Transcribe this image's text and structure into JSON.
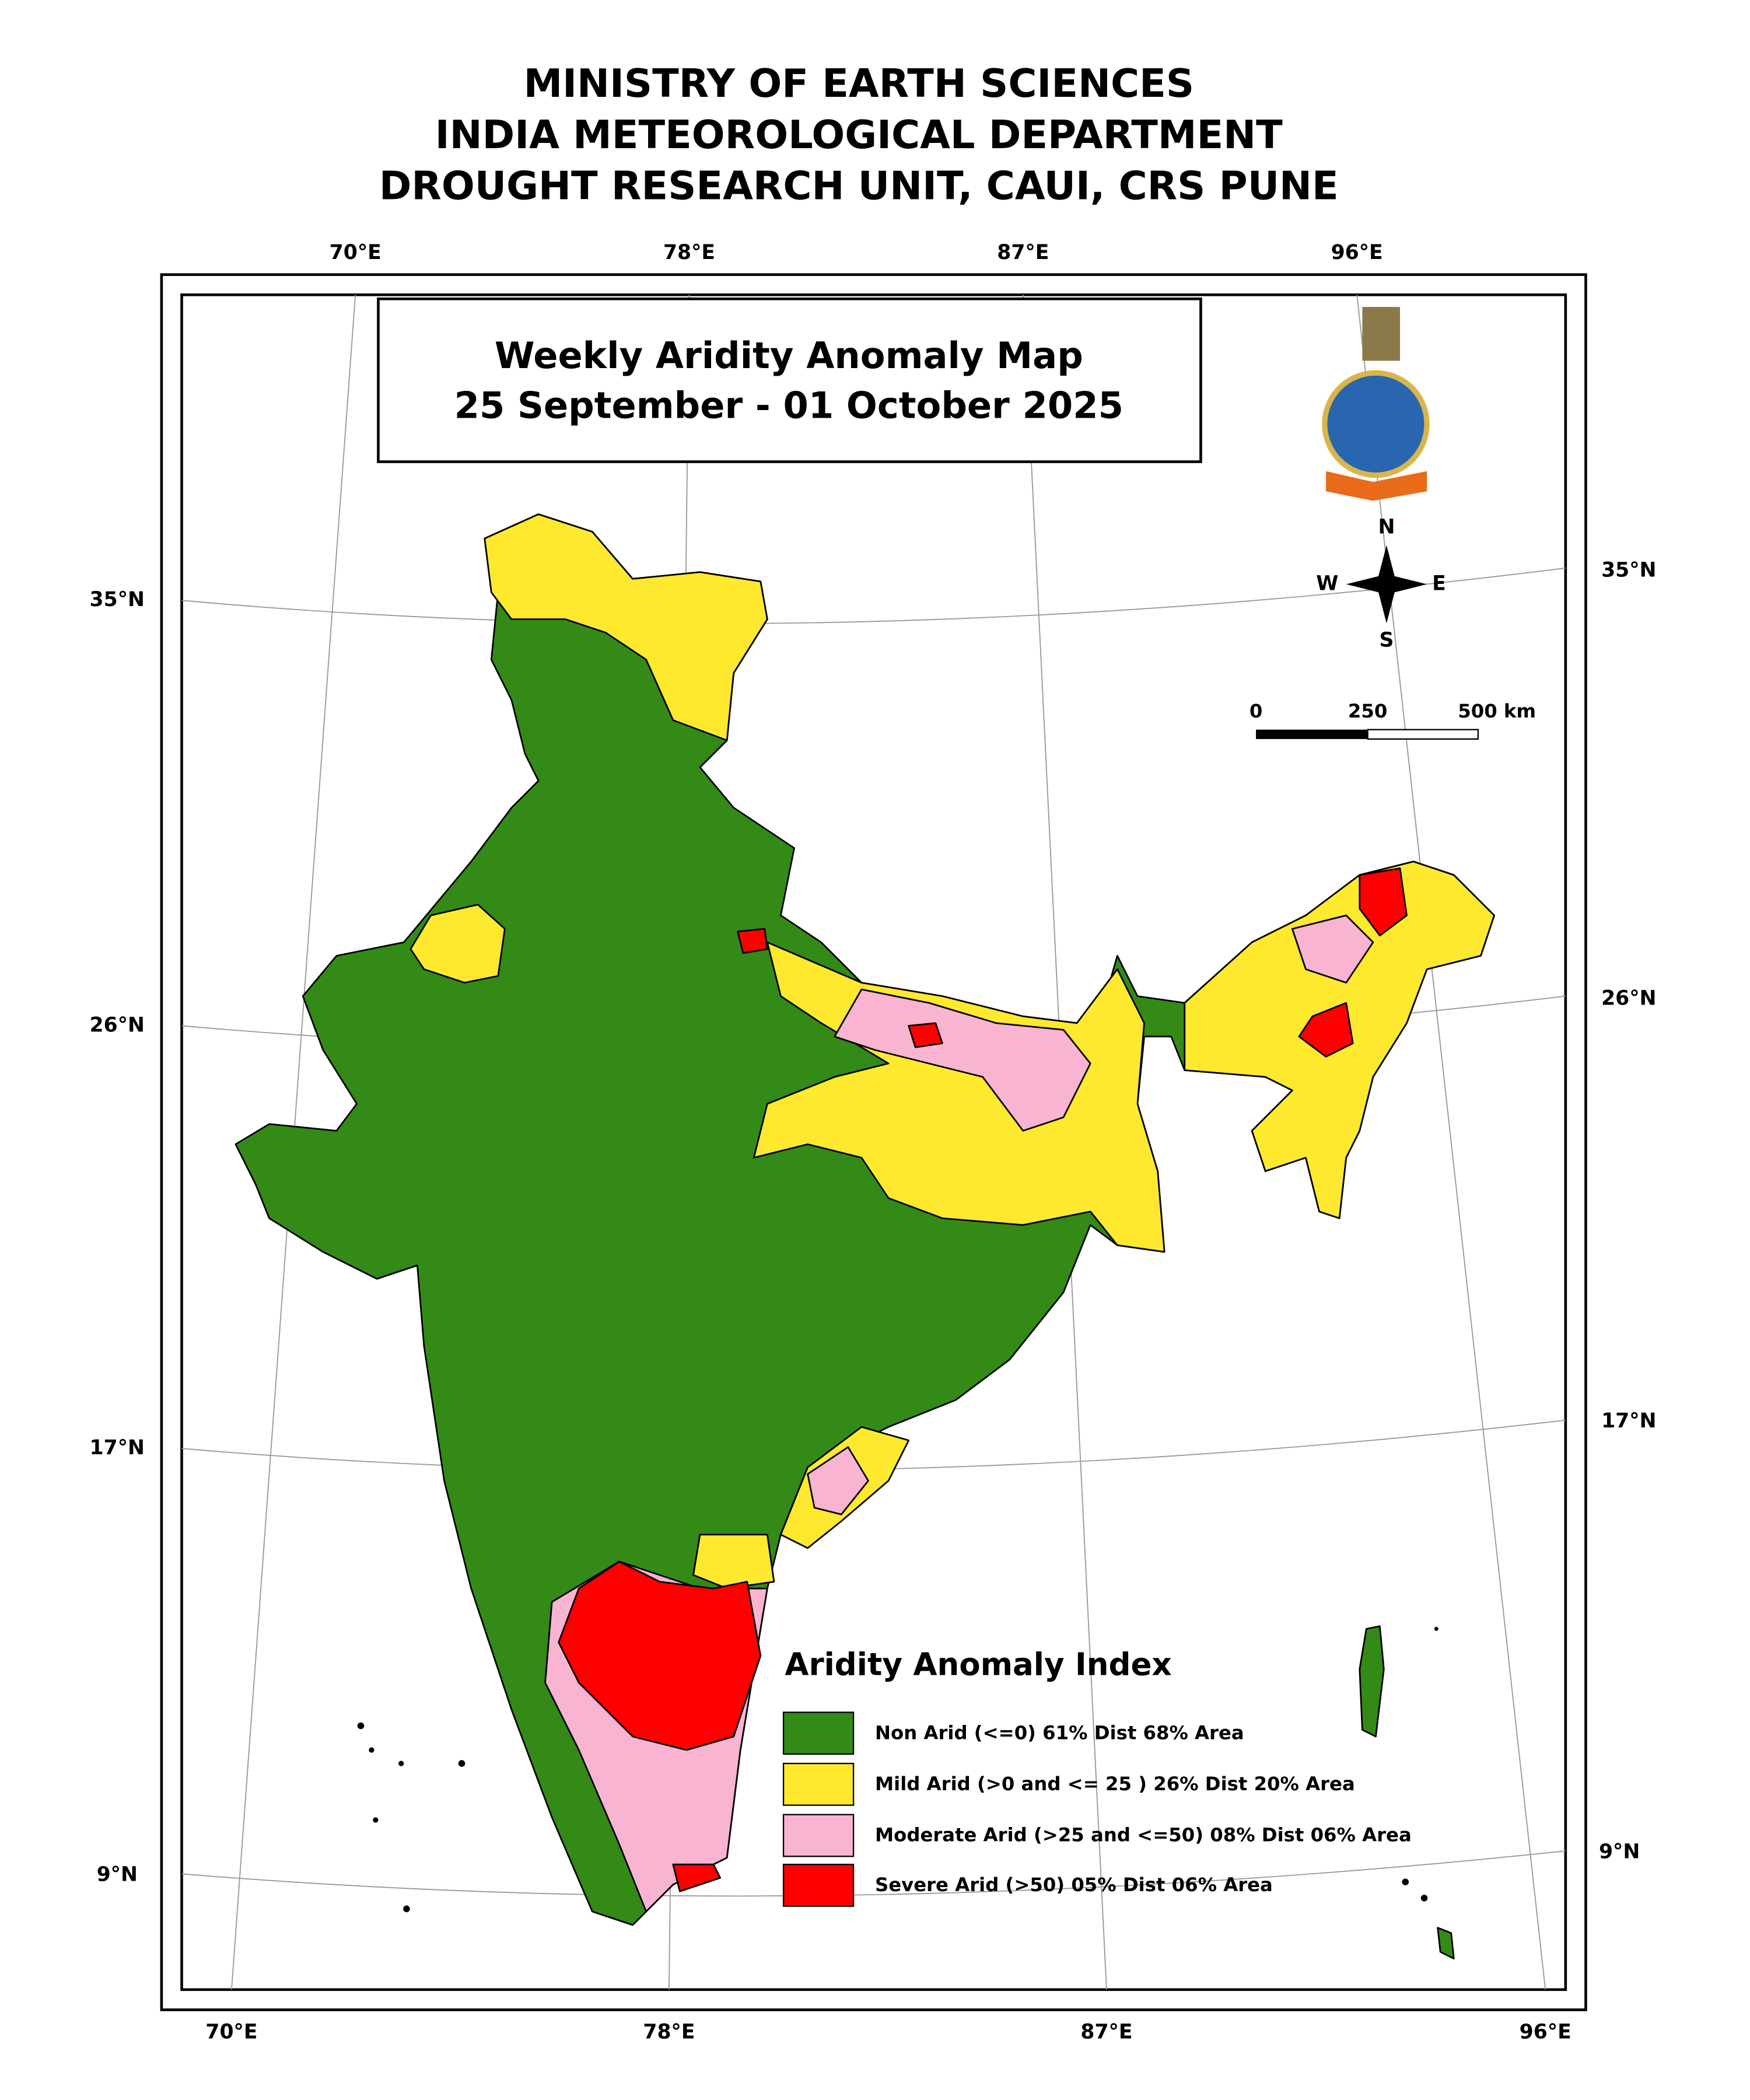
{
  "header": {
    "lines": [
      "MINISTRY OF EARTH SCIENCES",
      "INDIA METEOROLOGICAL DEPARTMENT",
      "DROUGHT RESEARCH UNIT, CAUI, CRS PUNE"
    ]
  },
  "map": {
    "title": [
      "Weekly Aridity Anomaly Map",
      "25 September - 01 October  2025"
    ],
    "graticule": {
      "top": [
        "70°E",
        "78°E",
        "87°E",
        "96°E"
      ],
      "bottom": [
        "70°E",
        "78°E",
        "87°E",
        "96°E"
      ],
      "left": [
        "35°N",
        "26°N",
        "17°N",
        "9°N"
      ],
      "right": [
        "35°N",
        "26°N",
        "17°N",
        "9°N"
      ]
    },
    "compass": {
      "n": "N",
      "e": "E",
      "s": "S",
      "w": "W"
    },
    "scale_bar": {
      "labels": [
        "0",
        "250",
        "500 km"
      ]
    },
    "legend": {
      "title": "Aridity Anomaly Index",
      "items": [
        {
          "label": "Non Arid (<=0) 61% Dist 68% Area",
          "color": "#338a17"
        },
        {
          "label": "Mild Arid (>0 and <= 25 ) 26% Dist  20% Area",
          "color": "#ffe92e"
        },
        {
          "label": "Moderate Arid (>25 and <=50) 08% Dist 06% Area",
          "color": "#f9b4d2"
        },
        {
          "label": "Severe Arid (>50) 05% Dist  06% Area",
          "color": "#ff0000"
        }
      ]
    }
  }
}
